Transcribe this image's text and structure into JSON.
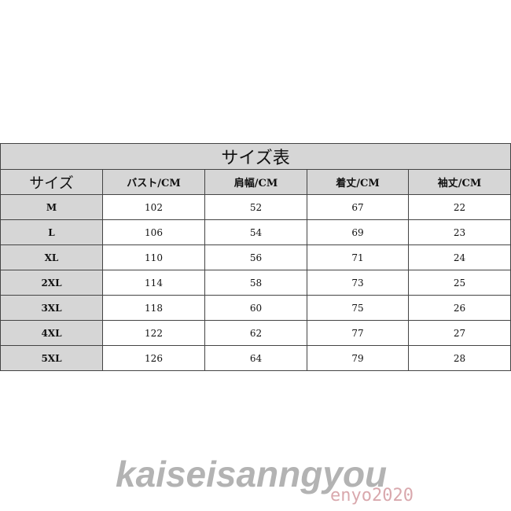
{
  "table": {
    "title": "サイズ表",
    "headers": [
      "サイズ",
      "バスト/CM",
      "肩幅/CM",
      "着丈/CM",
      "袖丈/CM"
    ],
    "rows": [
      [
        "M",
        "102",
        "52",
        "67",
        "22"
      ],
      [
        "L",
        "106",
        "54",
        "69",
        "23"
      ],
      [
        "XL",
        "110",
        "56",
        "71",
        "24"
      ],
      [
        "2XL",
        "114",
        "58",
        "73",
        "25"
      ],
      [
        "3XL",
        "118",
        "60",
        "75",
        "26"
      ],
      [
        "4XL",
        "122",
        "62",
        "77",
        "27"
      ],
      [
        "5XL",
        "126",
        "64",
        "79",
        "28"
      ]
    ]
  },
  "watermark": {
    "brand": "kaiseisanngyou",
    "tag": "enyo2020"
  }
}
